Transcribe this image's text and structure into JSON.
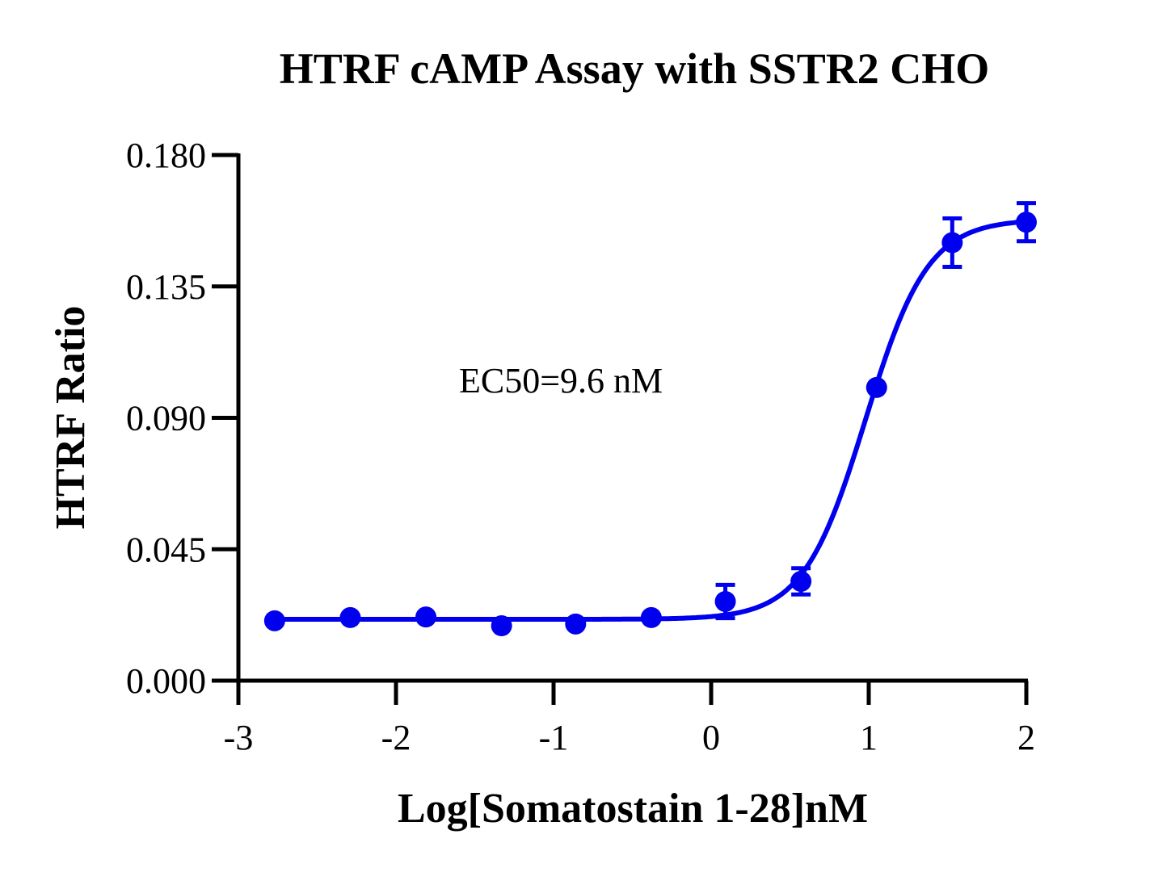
{
  "chart_data": {
    "type": "scatter",
    "title": "HTRF cAMP Assay with SSTR2 CHO",
    "xlabel": "Log[Somatostain 1-28]nM",
    "ylabel": "HTRF Ratio",
    "xlim": [
      -3,
      2
    ],
    "ylim": [
      0,
      0.18
    ],
    "xticks": [
      "-3",
      "-2",
      "-1",
      "0",
      "1",
      "2"
    ],
    "yticks": [
      "0.000",
      "0.045",
      "0.090",
      "0.135",
      "0.180"
    ],
    "grid": false,
    "annotation": "EC50=9.6 nM",
    "color": "#0000ee",
    "series": [
      {
        "x": [
          -2.77,
          -2.29,
          -1.81,
          -1.33,
          -0.86,
          -0.38,
          0.09,
          0.57,
          1.05,
          1.53,
          2.0
        ],
        "y": [
          0.0205,
          0.0216,
          0.0218,
          0.0188,
          0.0194,
          0.0216,
          0.0271,
          0.034,
          0.1004,
          0.15,
          0.157
        ],
        "error": [
          0,
          0,
          0,
          0,
          0,
          0,
          0.0057,
          0.0045,
          0,
          0.0083,
          0.0065
        ]
      }
    ],
    "fit": {
      "model": "4PL",
      "bottom": 0.021,
      "top": 0.158,
      "logEC50": 0.98,
      "hill": 2.2
    }
  }
}
